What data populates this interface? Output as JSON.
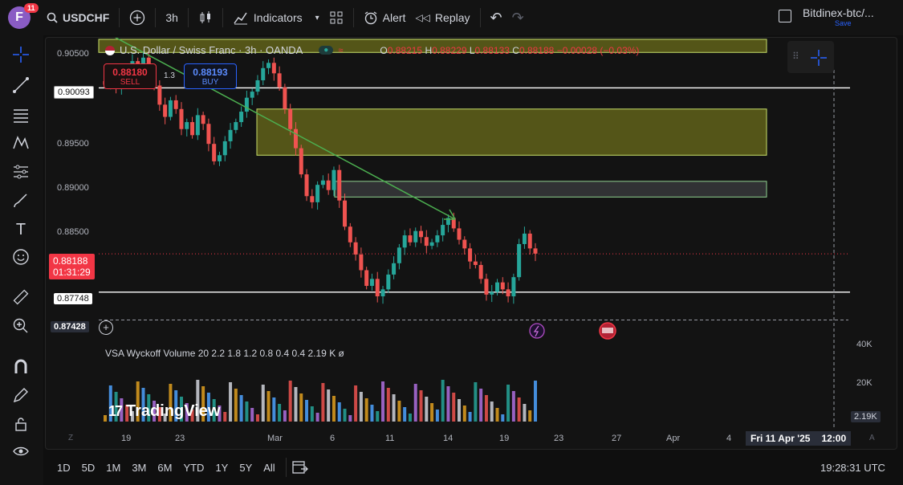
{
  "topbar": {
    "avatar_letter": "F",
    "avatar_badge": "11",
    "symbol": "USDCHF",
    "interval": "3h",
    "indicators": "Indicators",
    "alert": "Alert",
    "replay": "Replay",
    "layout_name": "Bitdinex-btc/...",
    "save": "Save"
  },
  "legend": {
    "title": "U.S. Dollar / Swiss Franc · 3h · OANDA",
    "open_label": "O",
    "open": "0.88215",
    "high_label": "H",
    "high": "0.88229",
    "low_label": "L",
    "low": "0.88133",
    "close_label": "C",
    "close": "0.88188",
    "change": "−0.00028 (−0.03%)"
  },
  "trade": {
    "sell_price": "0.88180",
    "sell_label": "SELL",
    "buy_price": "0.88193",
    "buy_label": "BUY",
    "spread": "1.3"
  },
  "price_axis": {
    "ticks": [
      "0.90500",
      "0.89500",
      "0.89000",
      "0.88500"
    ],
    "tag_upper_line": "0.90093",
    "tag_current": "0.88188",
    "tag_countdown": "01:31:29",
    "tag_lower_line": "0.87748",
    "tag_crosshair": "0.87428",
    "vol_ticks": [
      "40K",
      "20K"
    ],
    "vol_current": "2.19K"
  },
  "time_axis": {
    "ticks": [
      "19",
      "23",
      "Mar",
      "6",
      "11",
      "14",
      "19",
      "23",
      "27",
      "Apr",
      "4"
    ],
    "crosshair_time": "Fri 11 Apr '25",
    "crosshair_clock": "12:00"
  },
  "volume_legend": "VSA Wyckoff Volume 20 2.2 1.8 1.2 0.8 0.4 0.4  2.19 K  ø",
  "watermark": "TradingView",
  "bottombar": {
    "ranges": [
      "1D",
      "5D",
      "1M",
      "3M",
      "6M",
      "YTD",
      "1Y",
      "5Y",
      "All"
    ],
    "clock": "19:28:31 UTC"
  },
  "colors": {
    "up": "#26a69a",
    "down": "#ef5350",
    "zone_yellow": "#8a8d1e",
    "zone_grey": "#4a4d50",
    "trend_arrow": "#4caf50",
    "accent": "#2962ff"
  },
  "chart_data": {
    "type": "candlestick",
    "title": "U.S. Dollar / Swiss Franc · 3h · OANDA",
    "ylim": [
      0.8735,
      0.9065
    ],
    "horizontal_lines": [
      0.90093,
      0.87748,
      0.87428
    ],
    "zones": [
      {
        "from": 0.905,
        "to": 0.9065,
        "color": "yellow"
      },
      {
        "from": 0.8932,
        "to": 0.8985,
        "color": "yellow"
      },
      {
        "from": 0.8884,
        "to": 0.8902,
        "color": "grey"
      }
    ],
    "closes": [
      0.9013,
      0.9018,
      0.901,
      0.9022,
      0.903,
      0.904,
      0.9035,
      0.9044,
      0.9031,
      0.9012,
      0.899,
      0.8976,
      0.8995,
      0.8985,
      0.8962,
      0.897,
      0.8955,
      0.8978,
      0.8968,
      0.8945,
      0.8925,
      0.8932,
      0.8948,
      0.8961,
      0.897,
      0.8982,
      0.8998,
      0.9005,
      0.9018,
      0.9032,
      0.9038,
      0.9026,
      0.901,
      0.8985,
      0.8962,
      0.894,
      0.891,
      0.8885,
      0.8878,
      0.8898,
      0.8903,
      0.8892,
      0.8915,
      0.888,
      0.885,
      0.8832,
      0.8818,
      0.88,
      0.8782,
      0.879,
      0.877,
      0.8778,
      0.8795,
      0.8808,
      0.8826,
      0.884,
      0.8832,
      0.8845,
      0.8838,
      0.8828,
      0.8832,
      0.884,
      0.8852,
      0.886,
      0.8848,
      0.8835,
      0.8825,
      0.881,
      0.8806,
      0.879,
      0.8772,
      0.8775,
      0.8786,
      0.8778,
      0.877,
      0.8792,
      0.883,
      0.8842,
      0.8825,
      0.8819
    ]
  }
}
